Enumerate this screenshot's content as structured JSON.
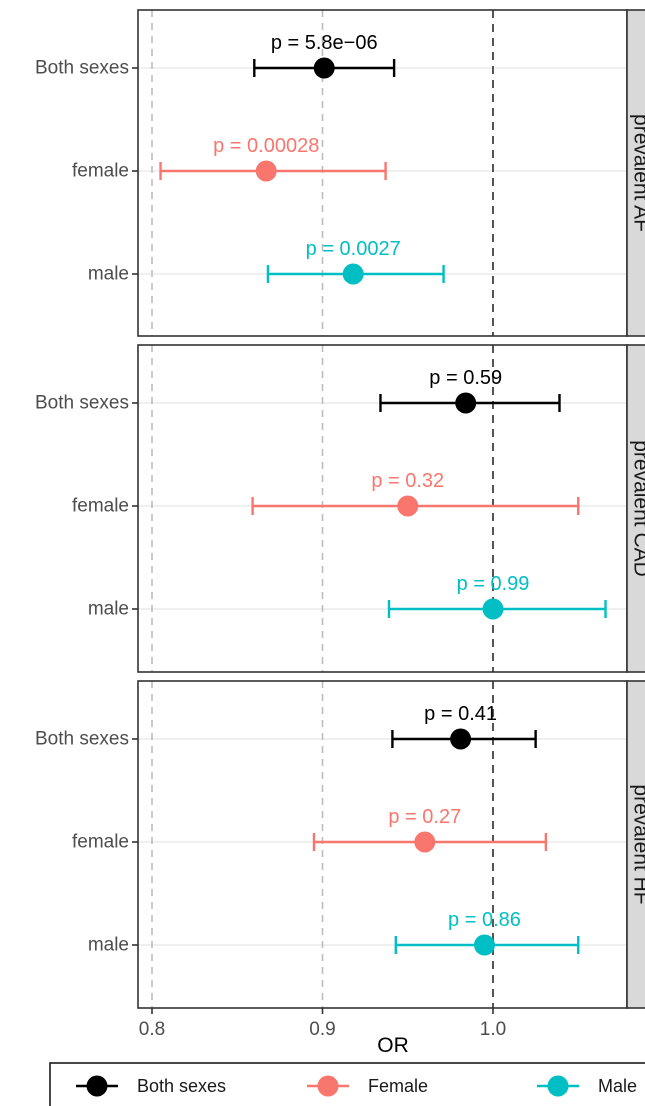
{
  "chart_data": {
    "type": "scatter",
    "subtype": "forest-plot-faceted",
    "xlabel": "OR",
    "x_ticks": [
      0.8,
      0.9,
      1.0
    ],
    "x_tick_labels": [
      "0.8",
      "0.9",
      "1.0"
    ],
    "xlim": [
      0.79,
      1.08
    ],
    "reference_line": 1.0,
    "grid": true,
    "legend_position": "bottom",
    "categories": [
      "Both sexes",
      "female",
      "male"
    ],
    "series": [
      {
        "name": "Both sexes",
        "color": "#000000"
      },
      {
        "name": "Female",
        "color": "#F8766D"
      },
      {
        "name": "Male",
        "color": "#00BFC4"
      }
    ],
    "panels": [
      {
        "strip": "prevalent AF",
        "rows": [
          {
            "category": "Both sexes",
            "series": 0,
            "or": 0.901,
            "lo": 0.86,
            "hi": 0.942,
            "p_label": "p = 5.8e−06"
          },
          {
            "category": "female",
            "series": 1,
            "or": 0.867,
            "lo": 0.805,
            "hi": 0.937,
            "p_label": "p = 0.00028"
          },
          {
            "category": "male",
            "series": 2,
            "or": 0.918,
            "lo": 0.868,
            "hi": 0.971,
            "p_label": "p = 0.0027"
          }
        ]
      },
      {
        "strip": "prevalent CAD",
        "rows": [
          {
            "category": "Both sexes",
            "series": 0,
            "or": 0.984,
            "lo": 0.934,
            "hi": 1.039,
            "p_label": "p = 0.59"
          },
          {
            "category": "female",
            "series": 1,
            "or": 0.95,
            "lo": 0.859,
            "hi": 1.05,
            "p_label": "p = 0.32"
          },
          {
            "category": "male",
            "series": 2,
            "or": 1.0,
            "lo": 0.939,
            "hi": 1.066,
            "p_label": "p = 0.99"
          }
        ]
      },
      {
        "strip": "prevalent HF",
        "rows": [
          {
            "category": "Both sexes",
            "series": 0,
            "or": 0.981,
            "lo": 0.941,
            "hi": 1.025,
            "p_label": "p = 0.41"
          },
          {
            "category": "female",
            "series": 1,
            "or": 0.96,
            "lo": 0.895,
            "hi": 1.031,
            "p_label": "p = 0.27"
          },
          {
            "category": "male",
            "series": 2,
            "or": 0.995,
            "lo": 0.943,
            "hi": 1.05,
            "p_label": "p = 0.86"
          }
        ]
      }
    ]
  }
}
